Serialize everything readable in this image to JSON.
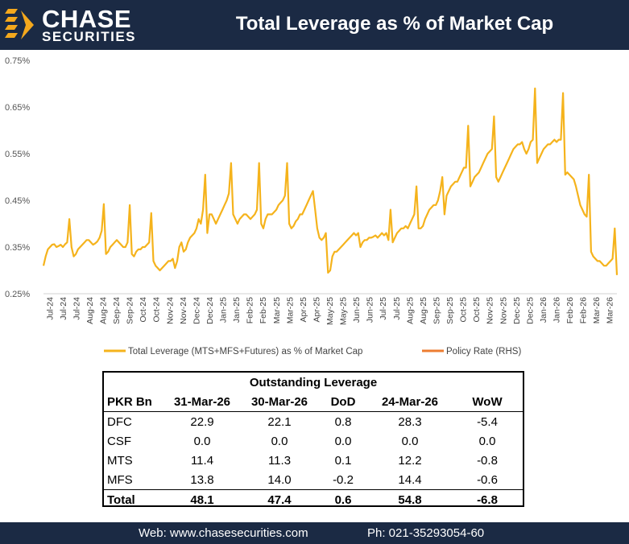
{
  "header": {
    "logo_word": "CHASE",
    "logo_sub": "SECURITIES",
    "title": "Total Leverage as % of Market Cap"
  },
  "colors": {
    "header_bg": "#1b2a44",
    "series_line": "#f5b31c",
    "policy_rate": "#ed7d31",
    "logo_orange": "#f4a81d"
  },
  "chart_data": {
    "type": "line",
    "title": "Total Leverage as % of Market Cap",
    "xlabel": "",
    "ylabel": "",
    "ylim": [
      0.25,
      0.75
    ],
    "yticks": [
      "0.25%",
      "0.35%",
      "0.45%",
      "0.55%",
      "0.65%",
      "0.75%"
    ],
    "ytick_values": [
      0.25,
      0.35,
      0.45,
      0.55,
      0.65,
      0.75
    ],
    "xtick_labels": [
      "Jul-24",
      "Jul-24",
      "Jul-24",
      "Aug-24",
      "Aug-24",
      "Sep-24",
      "Sep-24",
      "Oct-24",
      "Oct-24",
      "Nov-24",
      "Nov-24",
      "Dec-24",
      "Dec-24",
      "Jan-25",
      "Jan-25",
      "Feb-25",
      "Feb-25",
      "Mar-25",
      "Mar-25",
      "Apr-25",
      "Apr-25",
      "May-25",
      "May-25",
      "Jun-25",
      "Jun-25",
      "Jul-25",
      "Jul-25",
      "Aug-25",
      "Aug-25",
      "Sep-25",
      "Sep-25",
      "Oct-25",
      "Oct-25",
      "Nov-25",
      "Nov-25",
      "Dec-25",
      "Dec-25",
      "Jan-26",
      "Jan-26",
      "Feb-26",
      "Feb-26",
      "Mar-26",
      "Mar-26"
    ],
    "legend": [
      "Total Leverage (MTS+MFS+Futures) as % of Market Cap",
      "Policy Rate (RHS)"
    ],
    "legend_position": "bottom",
    "grid": false,
    "series": [
      {
        "name": "Total Leverage (MTS+MFS+Futures) as % of Market Cap",
        "values": [
          0.31,
          0.33,
          0.345,
          0.35,
          0.355,
          0.356,
          0.35,
          0.352,
          0.355,
          0.35,
          0.356,
          0.36,
          0.41,
          0.35,
          0.33,
          0.335,
          0.345,
          0.35,
          0.355,
          0.36,
          0.365,
          0.365,
          0.36,
          0.355,
          0.358,
          0.362,
          0.37,
          0.385,
          0.442,
          0.335,
          0.34,
          0.35,
          0.355,
          0.36,
          0.365,
          0.36,
          0.355,
          0.35,
          0.35,
          0.36,
          0.44,
          0.335,
          0.33,
          0.34,
          0.345,
          0.345,
          0.35,
          0.35,
          0.355,
          0.36,
          0.423,
          0.32,
          0.31,
          0.305,
          0.3,
          0.305,
          0.31,
          0.315,
          0.32,
          0.32,
          0.325,
          0.305,
          0.32,
          0.35,
          0.36,
          0.34,
          0.345,
          0.36,
          0.37,
          0.375,
          0.38,
          0.39,
          0.41,
          0.4,
          0.43,
          0.505,
          0.38,
          0.42,
          0.42,
          0.41,
          0.4,
          0.41,
          0.42,
          0.43,
          0.44,
          0.45,
          0.465,
          0.53,
          0.42,
          0.41,
          0.4,
          0.41,
          0.415,
          0.42,
          0.42,
          0.415,
          0.41,
          0.415,
          0.42,
          0.43,
          0.53,
          0.4,
          0.39,
          0.41,
          0.42,
          0.42,
          0.42,
          0.425,
          0.43,
          0.44,
          0.445,
          0.45,
          0.46,
          0.53,
          0.4,
          0.39,
          0.395,
          0.405,
          0.41,
          0.42,
          0.42,
          0.43,
          0.44,
          0.45,
          0.46,
          0.47,
          0.43,
          0.39,
          0.37,
          0.365,
          0.37,
          0.38,
          0.295,
          0.3,
          0.33,
          0.34,
          0.34,
          0.345,
          0.35,
          0.355,
          0.36,
          0.365,
          0.37,
          0.375,
          0.38,
          0.375,
          0.38,
          0.35,
          0.36,
          0.365,
          0.365,
          0.37,
          0.37,
          0.372,
          0.375,
          0.37,
          0.375,
          0.38,
          0.375,
          0.38,
          0.365,
          0.43,
          0.36,
          0.37,
          0.38,
          0.385,
          0.39,
          0.39,
          0.395,
          0.39,
          0.4,
          0.41,
          0.42,
          0.48,
          0.39,
          0.39,
          0.395,
          0.41,
          0.42,
          0.43,
          0.435,
          0.44,
          0.44,
          0.45,
          0.47,
          0.5,
          0.42,
          0.46,
          0.47,
          0.48,
          0.485,
          0.49,
          0.49,
          0.5,
          0.51,
          0.52,
          0.52,
          0.61,
          0.48,
          0.49,
          0.5,
          0.505,
          0.51,
          0.52,
          0.53,
          0.54,
          0.55,
          0.555,
          0.56,
          0.63,
          0.5,
          0.49,
          0.5,
          0.51,
          0.52,
          0.53,
          0.54,
          0.55,
          0.56,
          0.565,
          0.57,
          0.57,
          0.575,
          0.56,
          0.55,
          0.56,
          0.575,
          0.58,
          0.69,
          0.53,
          0.54,
          0.55,
          0.56,
          0.565,
          0.57,
          0.57,
          0.575,
          0.58,
          0.575,
          0.58,
          0.58,
          0.68,
          0.505,
          0.51,
          0.505,
          0.5,
          0.495,
          0.48,
          0.46,
          0.44,
          0.43,
          0.42,
          0.415,
          0.505,
          0.34,
          0.33,
          0.325,
          0.32,
          0.32,
          0.315,
          0.31,
          0.31,
          0.315,
          0.32,
          0.325,
          0.39,
          0.29
        ]
      }
    ]
  },
  "table": {
    "title": "Outstanding Leverage",
    "headers": [
      "PKR Bn",
      "31-Mar-26",
      "30-Mar-26",
      "DoD",
      "24-Mar-26",
      "WoW"
    ],
    "rows": [
      [
        "DFC",
        "22.9",
        "22.1",
        "0.8",
        "28.3",
        "-5.4"
      ],
      [
        "CSF",
        "0.0",
        "0.0",
        "0.0",
        "0.0",
        "0.0"
      ],
      [
        "MTS",
        "11.4",
        "11.3",
        "0.1",
        "12.2",
        "-0.8"
      ],
      [
        "MFS",
        "13.8",
        "14.0",
        "-0.2",
        "14.4",
        "-0.6"
      ]
    ],
    "total": [
      "Total",
      "48.1",
      "47.4",
      "0.6",
      "54.8",
      "-6.8"
    ]
  },
  "footer": {
    "web": "Web: www.chasesecurities.com",
    "phone": "Ph: 021-35293054-60"
  }
}
